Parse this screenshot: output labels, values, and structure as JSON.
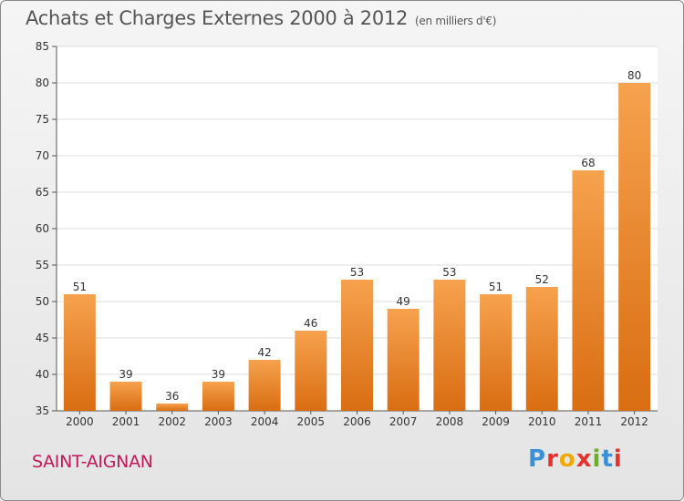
{
  "title": "Achats et Charges Externes 2000 à 2012",
  "unit_note": "(en milliers d'€)",
  "place": "SAINT-AIGNAN",
  "logo": {
    "text": "Proxiti",
    "letter_colors": [
      "#3b8fd4",
      "#e8312a",
      "#f2a900",
      "#e8312a",
      "#6ab023",
      "#3b8fd4",
      "#e8312a"
    ]
  },
  "colors": {
    "bar_light": "#f6a24e",
    "bar_dark": "#d96d12",
    "axis": "#555555"
  },
  "chart_data": {
    "type": "bar",
    "categories": [
      "2000",
      "2001",
      "2002",
      "2003",
      "2004",
      "2005",
      "2006",
      "2007",
      "2008",
      "2009",
      "2010",
      "2011",
      "2012"
    ],
    "values": [
      51,
      39,
      36,
      39,
      42,
      46,
      53,
      49,
      53,
      51,
      52,
      68,
      80
    ],
    "ylim": [
      35,
      85
    ],
    "yticks": [
      35,
      40,
      45,
      50,
      55,
      60,
      65,
      70,
      75,
      80,
      85
    ],
    "grid": true,
    "legend": "none"
  }
}
